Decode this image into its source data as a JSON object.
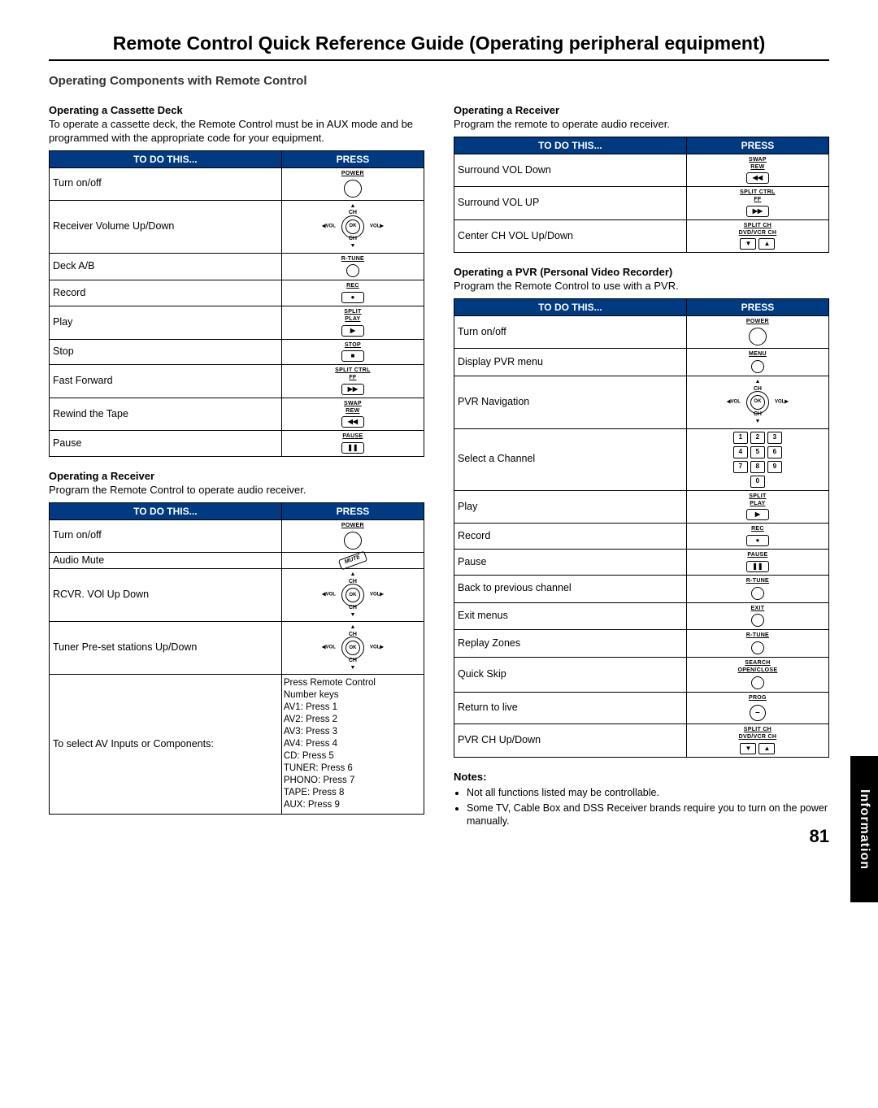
{
  "page": {
    "title": "Remote Control Quick Reference Guide (Operating peripheral equipment)",
    "subtitle": "Operating Components with Remote Control",
    "side_tab": "Information",
    "page_number": "81"
  },
  "col_head": {
    "todo": "TO DO THIS...",
    "press": "PRESS"
  },
  "buttons": {
    "power": "POWER",
    "rtune": "R-TUNE",
    "rec": "REC",
    "split_play": "SPLIT\nPLAY",
    "stop": "STOP",
    "split_ctrl_ff": "SPLIT CTRL\nFF",
    "swap_rew": "SWAP\nREW",
    "pause": "PAUSE",
    "menu": "MENU",
    "exit": "EXIT",
    "search": "SEARCH\nOPEN/CLOSE",
    "prog": "PROG",
    "split_ch": "SPLIT CH\nDVD/VCR CH",
    "mute": "MUTE",
    "nav": {
      "ok": "OK",
      "ch": "CH",
      "vol": "VOL"
    }
  },
  "cassette": {
    "head": "Operating a Cassette Deck",
    "desc": "To operate a cassette deck, the Remote Control must be in AUX mode and be programmed with the appropriate code for your equipment.",
    "rows": {
      "r0": "Turn on/off",
      "r1": "Receiver Volume Up/Down",
      "r2": "Deck A/B",
      "r3": "Record",
      "r4": "Play",
      "r5": "Stop",
      "r6": "Fast Forward",
      "r7": "Rewind the Tape",
      "r8": "Pause"
    }
  },
  "receiver_a": {
    "head": "Operating a Receiver",
    "desc": "Program the Remote Control to operate audio receiver.",
    "rows": {
      "r0": "Turn on/off",
      "r1": "Audio Mute",
      "r2": "RCVR. VOl Up Down",
      "r3": "Tuner Pre-set stations Up/Down",
      "r4": "To select AV Inputs or Components:"
    },
    "av_text": "Press Remote Control\nNumber keys\nAV1: Press 1\nAV2: Press 2\nAV3: Press 3\nAV4: Press 4\nCD: Press 5\nTUNER: Press 6\nPHONO: Press 7\nTAPE: Press 8\nAUX: Press 9"
  },
  "receiver_b": {
    "head": "Operating a Receiver",
    "desc": "Program the remote to operate audio receiver.",
    "rows": {
      "r0": "Surround VOL Down",
      "r1": "Surround VOL UP",
      "r2": "Center CH VOL Up/Down"
    }
  },
  "pvr": {
    "head": "Operating a PVR (Personal Video Recorder)",
    "desc": "Program the Remote Control to use with a PVR.",
    "rows": {
      "r0": "Turn on/off",
      "r1": "Display PVR menu",
      "r2": "PVR Navigation",
      "r3": "Select a Channel",
      "r4": "Play",
      "r5": "Record",
      "r6": "Pause",
      "r7": "Back to previous channel",
      "r8": "Exit menus",
      "r9": "Replay Zones",
      "r10": "Quick Skip",
      "r11": "Return to live",
      "r12": "PVR CH Up/Down"
    }
  },
  "notes": {
    "head": "Notes:",
    "n0": "Not all functions listed may be controllable.",
    "n1": "Some TV, Cable Box and DSS Receiver brands require you to turn on the power manually."
  },
  "style": {
    "header_bg": "#003a80",
    "header_fg": "#ffffff",
    "page_bg": "#ffffff",
    "text_color": "#000000"
  }
}
